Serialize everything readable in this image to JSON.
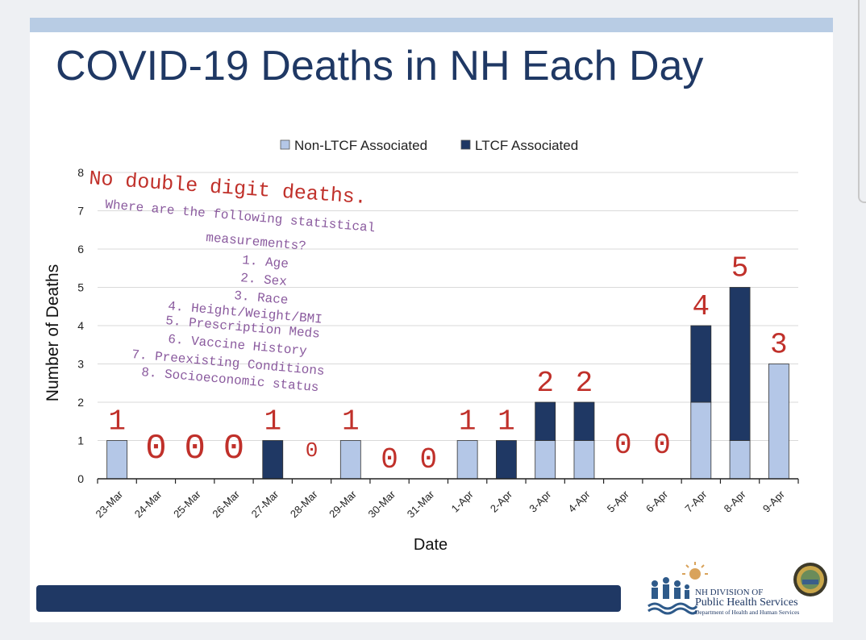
{
  "slide": {
    "title": "COVID-19 Deaths in NH Each Day"
  },
  "chart_data": {
    "type": "bar",
    "stacked": true,
    "categories": [
      "23-Mar",
      "24-Mar",
      "25-Mar",
      "26-Mar",
      "27-Mar",
      "28-Mar",
      "29-Mar",
      "30-Mar",
      "31-Mar",
      "1-Apr",
      "2-Apr",
      "3-Apr",
      "4-Apr",
      "5-Apr",
      "6-Apr",
      "7-Apr",
      "8-Apr",
      "9-Apr"
    ],
    "series": [
      {
        "name": "Non-LTCF Associated",
        "color": "#b4c7e7",
        "values": [
          1,
          0,
          0,
          0,
          0,
          0,
          1,
          0,
          0,
          1,
          0,
          1,
          1,
          0,
          0,
          2,
          1,
          3
        ]
      },
      {
        "name": "LTCF Associated",
        "color": "#1f3864",
        "values": [
          0,
          0,
          0,
          0,
          1,
          0,
          0,
          0,
          0,
          0,
          1,
          1,
          1,
          0,
          0,
          2,
          4,
          0
        ]
      }
    ],
    "xlabel": "Date",
    "ylabel": "Number of Deaths",
    "ylim": [
      0,
      8
    ],
    "yticks": [
      0,
      1,
      2,
      3,
      4,
      5,
      6,
      7,
      8
    ],
    "grid": true,
    "legend": "top-center"
  },
  "annotations": {
    "color_red": "#c0302a",
    "color_purple": "#8a5a9e",
    "daily_totals": [
      "1",
      "0",
      "0",
      "0",
      "1",
      "0",
      "1",
      "0",
      "0",
      "1",
      "1",
      "2",
      "2",
      "0",
      "0",
      "4",
      "5",
      "3"
    ],
    "headline": "No double digit deaths.",
    "question_lines": [
      "Where are the following statistical",
      "measurements?",
      "1. Age",
      "2. Sex",
      "3. Race",
      "4. Height/Weight/BMI",
      "5. Prescription Meds",
      "6. Vaccine History",
      "7. Preexisting Conditions",
      "8. Socioeconomic status"
    ]
  },
  "logo": {
    "line1": "NH DIVISION OF",
    "line2": "Public Health Services",
    "line3": "Department of Health and Human Services",
    "seal": "state-seal-icon",
    "emblem": "people-sun-icon"
  }
}
